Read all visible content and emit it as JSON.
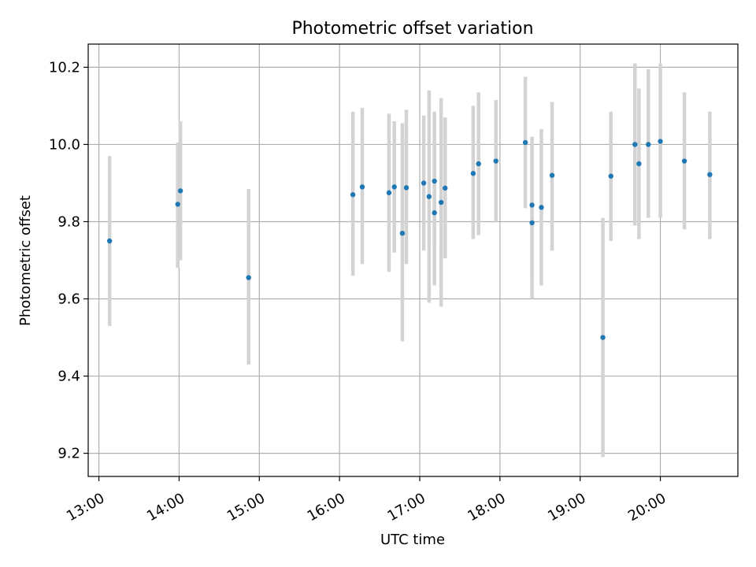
{
  "chart_data": {
    "type": "scatter",
    "title": "Photometric offset variation",
    "xlabel": "UTC time",
    "ylabel": "Photometric offset",
    "xlim": [
      "12:52",
      "20:58"
    ],
    "ylim": [
      9.14,
      10.26
    ],
    "x_ticks": [
      "13:00",
      "14:00",
      "15:00",
      "16:00",
      "17:00",
      "18:00",
      "19:00",
      "20:00"
    ],
    "y_ticks": [
      "9.2",
      "9.4",
      "9.6",
      "9.8",
      "10.0",
      "10.2"
    ],
    "grid": true,
    "colors": {
      "points": "#1f77b4",
      "errorbars": "#d3d3d3",
      "grid": "#b0b0b0"
    },
    "series": [
      {
        "points": [
          {
            "x": "13:08",
            "y": 9.75,
            "lo": 9.53,
            "hi": 9.97
          },
          {
            "x": "13:59",
            "y": 9.845,
            "lo": 9.68,
            "hi": 10.005
          },
          {
            "x": "14:01",
            "y": 9.88,
            "lo": 9.7,
            "hi": 10.06
          },
          {
            "x": "14:52",
            "y": 9.655,
            "lo": 9.43,
            "hi": 9.885
          },
          {
            "x": "16:10",
            "y": 9.87,
            "lo": 9.66,
            "hi": 10.085
          },
          {
            "x": "16:17",
            "y": 9.89,
            "lo": 9.69,
            "hi": 10.095
          },
          {
            "x": "16:37",
            "y": 9.875,
            "lo": 9.67,
            "hi": 10.08
          },
          {
            "x": "16:41",
            "y": 9.89,
            "lo": 9.72,
            "hi": 10.06
          },
          {
            "x": "16:47",
            "y": 9.77,
            "lo": 9.49,
            "hi": 10.055
          },
          {
            "x": "16:50",
            "y": 9.888,
            "lo": 9.69,
            "hi": 10.09
          },
          {
            "x": "17:03",
            "y": 9.9,
            "lo": 9.725,
            "hi": 10.075
          },
          {
            "x": "17:07",
            "y": 9.865,
            "lo": 9.59,
            "hi": 10.14
          },
          {
            "x": "17:11",
            "y": 9.905,
            "lo": 9.73,
            "hi": 10.085
          },
          {
            "x": "17:11",
            "y": 9.823,
            "lo": 9.635,
            "hi": 10.0
          },
          {
            "x": "17:16",
            "y": 9.85,
            "lo": 9.58,
            "hi": 10.12
          },
          {
            "x": "17:19",
            "y": 9.887,
            "lo": 9.705,
            "hi": 10.07
          },
          {
            "x": "17:40",
            "y": 9.925,
            "lo": 9.755,
            "hi": 10.1
          },
          {
            "x": "17:44",
            "y": 9.95,
            "lo": 9.765,
            "hi": 10.135
          },
          {
            "x": "17:57",
            "y": 9.957,
            "lo": 9.8,
            "hi": 10.115
          },
          {
            "x": "18:19",
            "y": 10.005,
            "lo": 9.835,
            "hi": 10.175
          },
          {
            "x": "18:24",
            "y": 9.843,
            "lo": 9.67,
            "hi": 10.02
          },
          {
            "x": "18:24",
            "y": 9.797,
            "lo": 9.6,
            "hi": 9.99
          },
          {
            "x": "18:31",
            "y": 9.837,
            "lo": 9.635,
            "hi": 10.04
          },
          {
            "x": "18:39",
            "y": 9.92,
            "lo": 9.725,
            "hi": 10.11
          },
          {
            "x": "19:17",
            "y": 9.5,
            "lo": 9.19,
            "hi": 9.81
          },
          {
            "x": "19:23",
            "y": 9.918,
            "lo": 9.75,
            "hi": 10.085
          },
          {
            "x": "19:41",
            "y": 10.0,
            "lo": 9.79,
            "hi": 10.21
          },
          {
            "x": "19:44",
            "y": 9.95,
            "lo": 9.755,
            "hi": 10.145
          },
          {
            "x": "19:51",
            "y": 10.0,
            "lo": 9.81,
            "hi": 10.195
          },
          {
            "x": "20:00",
            "y": 10.008,
            "lo": 9.81,
            "hi": 10.21
          },
          {
            "x": "20:18",
            "y": 9.957,
            "lo": 9.78,
            "hi": 10.135
          },
          {
            "x": "20:37",
            "y": 9.922,
            "lo": 9.755,
            "hi": 10.085
          }
        ]
      }
    ]
  }
}
